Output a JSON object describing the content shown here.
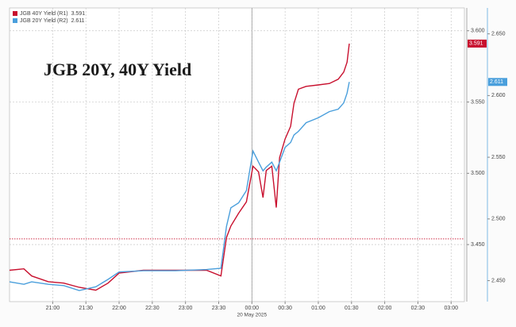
{
  "chart_data": {
    "type": "line",
    "title": "JGB 20Y, 40Y Yield",
    "x": [
      "20:21",
      "20:34",
      "20:41",
      "20:56",
      "21:10",
      "21:24",
      "21:39",
      "21:50",
      "22:00",
      "22:22",
      "22:51",
      "23:19",
      "23:32",
      "23:37",
      "23:41",
      "23:48",
      "23:55",
      "00:01",
      "00:06",
      "00:10",
      "00:13",
      "00:18",
      "00:22",
      "00:25",
      "00:30",
      "00:35",
      "00:38",
      "00:42",
      "00:49",
      "01:00",
      "01:10",
      "01:18",
      "01:23",
      "01:26",
      "01:28"
    ],
    "series": [
      {
        "name": "JGB 40Y Yield (R1)",
        "color": "#c8102e",
        "axis": "y",
        "values": [
          3.432,
          3.433,
          3.428,
          3.424,
          3.423,
          3.42,
          3.418,
          3.423,
          3.43,
          3.432,
          3.432,
          3.432,
          3.428,
          3.455,
          3.463,
          3.472,
          3.48,
          3.505,
          3.501,
          3.483,
          3.502,
          3.505,
          3.476,
          3.511,
          3.524,
          3.533,
          3.549,
          3.559,
          3.561,
          3.562,
          3.563,
          3.566,
          3.571,
          3.578,
          3.591
        ]
      },
      {
        "name": "JGB 20Y Yield (R2)",
        "color": "#4a9fdc",
        "axis": "y2",
        "values": [
          2.449,
          2.447,
          2.449,
          2.447,
          2.446,
          2.442,
          2.445,
          2.451,
          2.457,
          2.458,
          2.458,
          2.459,
          2.46,
          2.494,
          2.509,
          2.513,
          2.523,
          2.555,
          2.546,
          2.539,
          2.542,
          2.546,
          2.539,
          2.546,
          2.558,
          2.562,
          2.568,
          2.571,
          2.578,
          2.582,
          2.587,
          2.589,
          2.594,
          2.602,
          2.611
        ]
      }
    ],
    "xlim": [
      "20:21",
      "03:12"
    ],
    "xticks": [
      "21:00",
      "21:30",
      "22:00",
      "22:30",
      "23:00",
      "23:30",
      "00:00",
      "00:30",
      "01:00",
      "01:30",
      "02:00",
      "02:30",
      "03:00"
    ],
    "date_marker": {
      "x": "00:00",
      "label": "20 May 2025"
    },
    "ylim": [
      3.41,
      3.616
    ],
    "yticks": [
      {
        "value": 3.45,
        "label": "3.450"
      },
      {
        "value": 3.5,
        "label": "3.500"
      },
      {
        "value": 3.55,
        "label": "3.550"
      },
      {
        "value": 3.6,
        "label": "3.600"
      }
    ],
    "y2lim": [
      2.433,
      2.671
    ],
    "y2ticks": [
      {
        "value": 2.45,
        "label": "2.450"
      },
      {
        "value": 2.5,
        "label": "2.500"
      },
      {
        "value": 2.55,
        "label": "2.550"
      },
      {
        "value": 2.6,
        "label": "2.600"
      },
      {
        "value": 2.65,
        "label": "2.650"
      }
    ],
    "reference_line": {
      "value": 3.454,
      "color": "#c8102e"
    },
    "grid": true,
    "legend": "top-left"
  }
}
